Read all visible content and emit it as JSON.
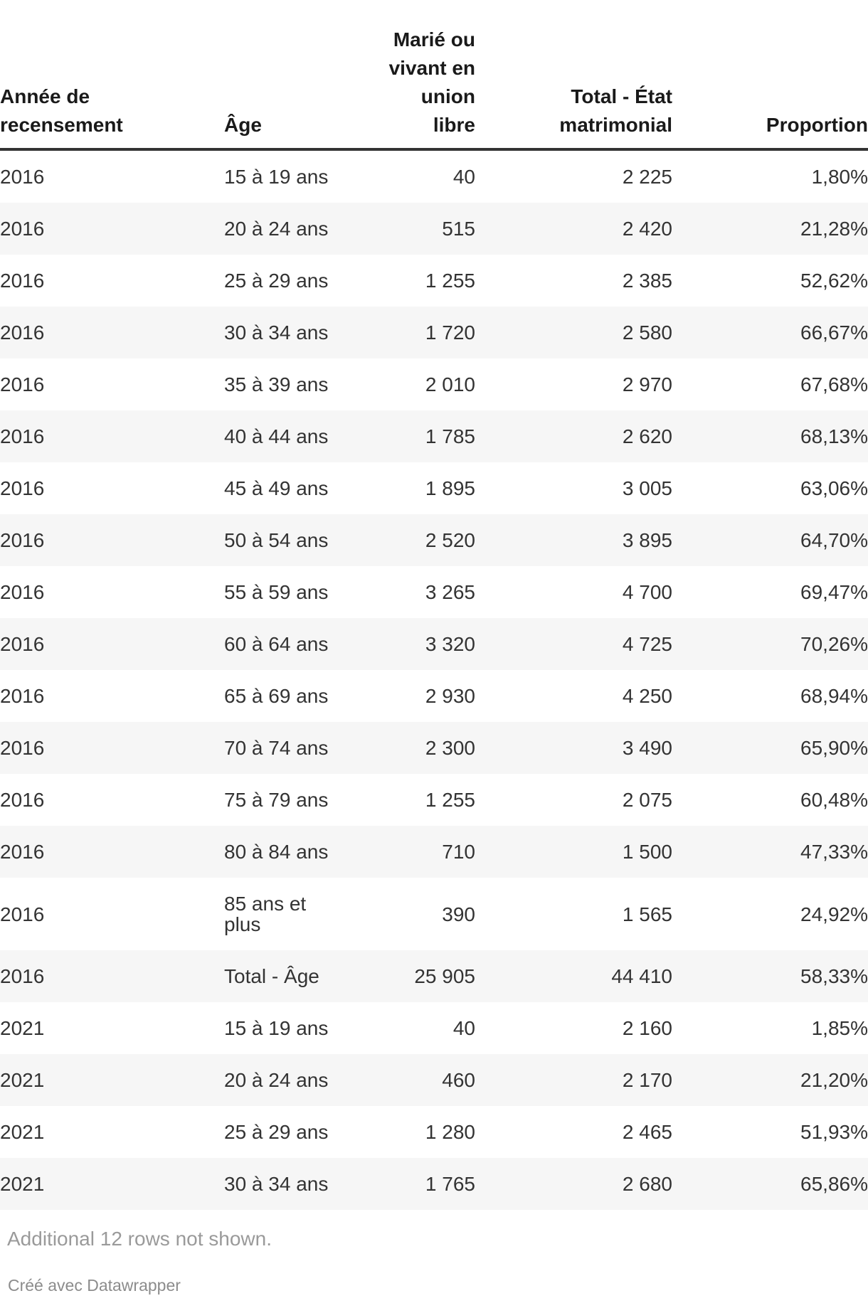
{
  "chart_data": {
    "type": "table",
    "columns": [
      "Année de recensement",
      "Âge",
      "Marié ou vivant en union libre",
      "Total - État matrimonial",
      "Proportion"
    ],
    "proportion_unit": "%",
    "rows": [
      [
        2016,
        "15 à 19 ans",
        40,
        2225,
        1.8
      ],
      [
        2016,
        "20 à 24 ans",
        515,
        2420,
        21.28
      ],
      [
        2016,
        "25 à 29 ans",
        1255,
        2385,
        52.62
      ],
      [
        2016,
        "30 à 34 ans",
        1720,
        2580,
        66.67
      ],
      [
        2016,
        "35 à 39 ans",
        2010,
        2970,
        67.68
      ],
      [
        2016,
        "40 à 44 ans",
        1785,
        2620,
        68.13
      ],
      [
        2016,
        "45 à 49 ans",
        1895,
        3005,
        63.06
      ],
      [
        2016,
        "50 à 54 ans",
        2520,
        3895,
        64.7
      ],
      [
        2016,
        "55 à 59 ans",
        3265,
        4700,
        69.47
      ],
      [
        2016,
        "60 à 64 ans",
        3320,
        4725,
        70.26
      ],
      [
        2016,
        "65 à 69 ans",
        2930,
        4250,
        68.94
      ],
      [
        2016,
        "70 à 74 ans",
        2300,
        3490,
        65.9
      ],
      [
        2016,
        "75 à 79 ans",
        1255,
        2075,
        60.48
      ],
      [
        2016,
        "80 à 84 ans",
        710,
        1500,
        47.33
      ],
      [
        2016,
        "85 ans et plus",
        390,
        1565,
        24.92
      ],
      [
        2016,
        "Total - Âge",
        25905,
        44410,
        58.33
      ],
      [
        2021,
        "15 à 19 ans",
        40,
        2160,
        1.85
      ],
      [
        2021,
        "20 à 24 ans",
        460,
        2170,
        21.2
      ],
      [
        2021,
        "25 à 29 ans",
        1280,
        2465,
        51.93
      ],
      [
        2021,
        "30 à 34 ans",
        1765,
        2680,
        65.86
      ]
    ]
  },
  "table": {
    "columns": [
      {
        "label": "Année de\nrecensement",
        "align": "left"
      },
      {
        "label": "Âge",
        "align": "left"
      },
      {
        "label": "Marié ou\nvivant en\nunion\nlibre",
        "align": "right"
      },
      {
        "label": "Total - État\nmatrimonial",
        "align": "right"
      },
      {
        "label": "Proportion",
        "align": "right"
      }
    ],
    "rows": [
      [
        "2016",
        "15 à 19 ans",
        "40",
        "2 225",
        "1,80%"
      ],
      [
        "2016",
        "20 à 24 ans",
        "515",
        "2 420",
        "21,28%"
      ],
      [
        "2016",
        "25 à 29 ans",
        "1 255",
        "2 385",
        "52,62%"
      ],
      [
        "2016",
        "30 à 34 ans",
        "1 720",
        "2 580",
        "66,67%"
      ],
      [
        "2016",
        "35 à 39 ans",
        "2 010",
        "2 970",
        "67,68%"
      ],
      [
        "2016",
        "40 à 44 ans",
        "1 785",
        "2 620",
        "68,13%"
      ],
      [
        "2016",
        "45 à 49 ans",
        "1 895",
        "3 005",
        "63,06%"
      ],
      [
        "2016",
        "50 à 54 ans",
        "2 520",
        "3 895",
        "64,70%"
      ],
      [
        "2016",
        "55 à 59 ans",
        "3 265",
        "4 700",
        "69,47%"
      ],
      [
        "2016",
        "60 à 64 ans",
        "3 320",
        "4 725",
        "70,26%"
      ],
      [
        "2016",
        "65 à 69 ans",
        "2 930",
        "4 250",
        "68,94%"
      ],
      [
        "2016",
        "70 à 74 ans",
        "2 300",
        "3 490",
        "65,90%"
      ],
      [
        "2016",
        "75 à 79 ans",
        "1 255",
        "2 075",
        "60,48%"
      ],
      [
        "2016",
        "80 à 84 ans",
        "710",
        "1 500",
        "47,33%"
      ],
      [
        "2016",
        "85 ans et\nplus",
        "390",
        "1 565",
        "24,92%"
      ],
      [
        "2016",
        "Total - Âge",
        "25 905",
        "44 410",
        "58,33%"
      ],
      [
        "2021",
        "15 à 19 ans",
        "40",
        "2 160",
        "1,85%"
      ],
      [
        "2021",
        "20 à 24 ans",
        "460",
        "2 170",
        "21,20%"
      ],
      [
        "2021",
        "25 à 29 ans",
        "1 280",
        "2 465",
        "51,93%"
      ],
      [
        "2021",
        "30 à 34 ans",
        "1 765",
        "2 680",
        "65,86%"
      ]
    ]
  },
  "footer": {
    "note": "Additional 12 rows not shown.",
    "credit_prefix": "Créé avec ",
    "credit_link": "Datawrapper"
  },
  "colors": {
    "header_text": "#1a1a1a",
    "body_text": "#333333",
    "header_border": "#333333",
    "row_stripe": "#f6f6f6",
    "note_text": "#9a9a9a",
    "credit_text": "#8c8c8c"
  }
}
